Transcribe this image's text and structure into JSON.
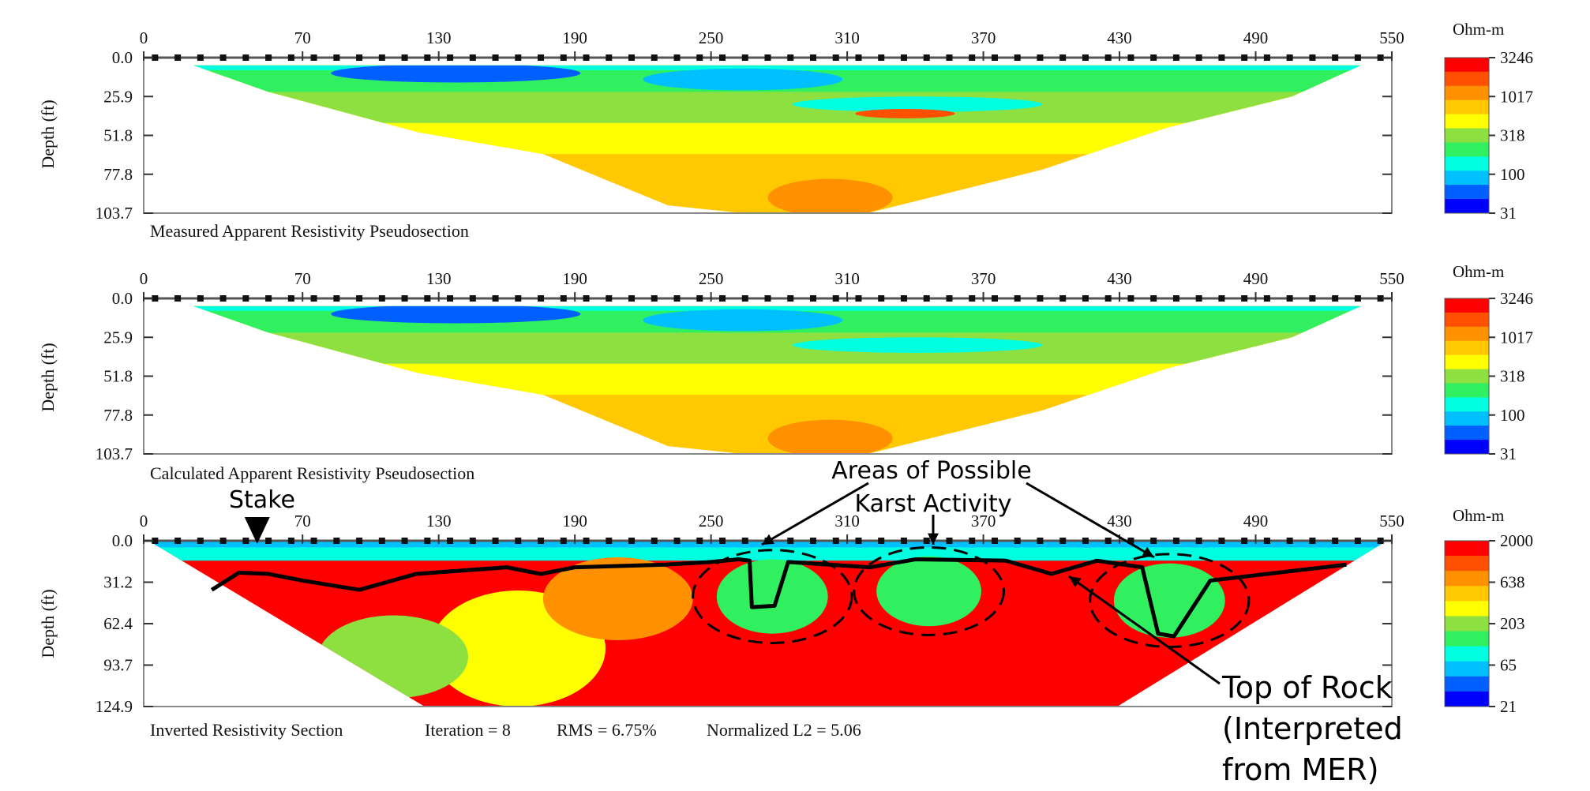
{
  "chart_data": [
    {
      "type": "heatmap",
      "title": "",
      "caption": "Measured Apparent Resistivity Pseudosection",
      "ylabel": "Depth (ft)",
      "x_ticks": [
        0,
        70,
        130,
        190,
        250,
        310,
        370,
        430,
        490,
        550
      ],
      "xlim": [
        0,
        550
      ],
      "y_ticks": [
        "0.0",
        "25.9",
        "51.8",
        "77.8",
        "103.7"
      ],
      "ylim": [
        0,
        103.7
      ],
      "colorbar": {
        "unit": "Ohm-m",
        "ticks": [
          "3246",
          "1017",
          "318",
          "100",
          "31"
        ]
      }
    },
    {
      "type": "heatmap",
      "title": "",
      "caption": "Calculated Apparent Resistivity Pseudosection",
      "ylabel": "Depth (ft)",
      "x_ticks": [
        0,
        70,
        130,
        190,
        250,
        310,
        370,
        430,
        490,
        550
      ],
      "xlim": [
        0,
        550
      ],
      "y_ticks": [
        "0.0",
        "25.9",
        "51.8",
        "77.8",
        "103.7"
      ],
      "ylim": [
        0,
        103.7
      ],
      "colorbar": {
        "unit": "Ohm-m",
        "ticks": [
          "3246",
          "1017",
          "318",
          "100",
          "31"
        ]
      }
    },
    {
      "type": "heatmap",
      "title": "",
      "caption": "Inverted Resistivity Section",
      "stats": [
        "Iteration = 8",
        "RMS = 6.75%",
        "Normalized L2 = 5.06"
      ],
      "ylabel": "Depth (ft)",
      "x_ticks": [
        0,
        70,
        130,
        190,
        250,
        310,
        370,
        430,
        490,
        550
      ],
      "xlim": [
        0,
        550
      ],
      "y_ticks": [
        "0.0",
        "31.2",
        "62.4",
        "93.7",
        "124.9"
      ],
      "ylim": [
        0,
        124.9
      ],
      "colorbar": {
        "unit": "Ohm-m",
        "ticks": [
          "2000",
          "638",
          "203",
          "65",
          "21"
        ]
      },
      "top_of_rock": [
        [
          30,
          37
        ],
        [
          42,
          24
        ],
        [
          55,
          25
        ],
        [
          70,
          30
        ],
        [
          95,
          37
        ],
        [
          120,
          25
        ],
        [
          160,
          20
        ],
        [
          175,
          25
        ],
        [
          190,
          20
        ],
        [
          230,
          18
        ],
        [
          250,
          16
        ],
        [
          262,
          14
        ],
        [
          267,
          15
        ],
        [
          268,
          50
        ],
        [
          278,
          49
        ],
        [
          284,
          16
        ],
        [
          320,
          20
        ],
        [
          340,
          14
        ],
        [
          380,
          15
        ],
        [
          400,
          25
        ],
        [
          420,
          15
        ],
        [
          440,
          20
        ],
        [
          447,
          70
        ],
        [
          454,
          72
        ],
        [
          470,
          30
        ],
        [
          530,
          18
        ]
      ],
      "karst_circles": [
        [
          277,
          42,
          35
        ],
        [
          346,
          38,
          33
        ],
        [
          452,
          45,
          35
        ]
      ],
      "stake_x": 50
    }
  ],
  "annotations": {
    "stake": "Stake",
    "karst_line1": "Areas of Possible",
    "karst_line2": "Karst Activity",
    "rock_line1": "Top of Rock",
    "rock_line2": "(Interpreted",
    "rock_line3": "from MER)"
  },
  "colors": {
    "scale": [
      "#0000ff",
      "#0060ff",
      "#00c0ff",
      "#00ffe0",
      "#30f060",
      "#8ee040",
      "#ffff00",
      "#ffc800",
      "#ff9000",
      "#ff5000",
      "#ff0000"
    ]
  }
}
